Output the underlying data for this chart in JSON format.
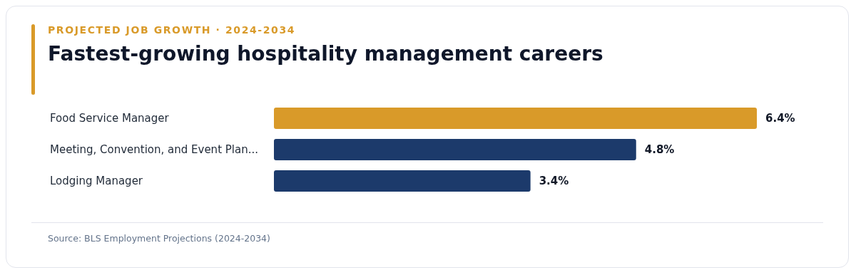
{
  "chart_data": {
    "type": "bar",
    "orientation": "horizontal",
    "subtitle": "PROJECTED JOB GROWTH · 2024-2034",
    "title": "Fastest-growing hospitality management careers",
    "categories": [
      "Food Service Manager",
      "Meeting, Convention, and Event Plan...",
      "Lodging Manager"
    ],
    "values": [
      6.4,
      4.8,
      3.4
    ],
    "colors": [
      "#d99a29",
      "#1c3a6b",
      "#1c3a6b"
    ],
    "value_labels": [
      "6.4%",
      "4.8%",
      "3.4%"
    ],
    "annotations": [
      "Source: BLS Employment Projections (2024-2034)"
    ]
  }
}
